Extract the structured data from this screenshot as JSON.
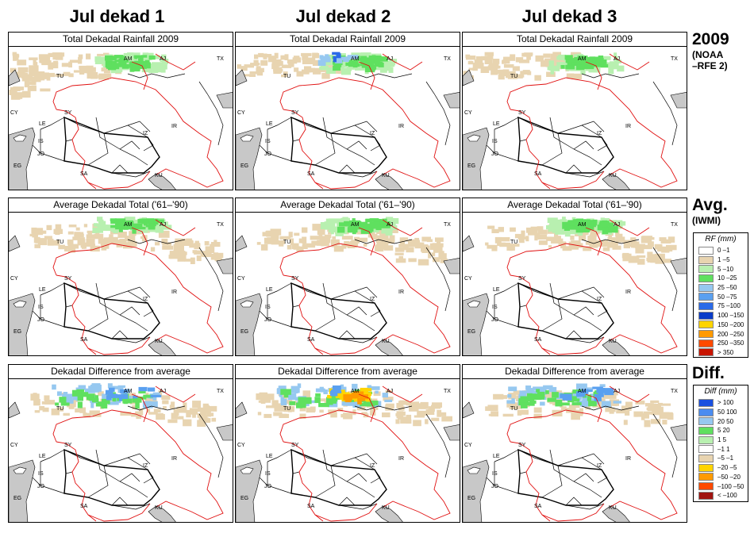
{
  "columns": [
    "Jul dekad 1",
    "Jul dekad 2",
    "Jul dekad 3"
  ],
  "rows": [
    {
      "panel_title": "Total Dekadal Rainfall 2009",
      "label_main": "2009",
      "label_sub": [
        "(NOAA",
        "–RFE 2)"
      ]
    },
    {
      "panel_title": "Average Dekadal Total ('61–'90)",
      "label_main": "Avg.",
      "label_sub": [
        "(IWMI)"
      ]
    },
    {
      "panel_title": "Dekadal Difference from average",
      "label_main": "Diff.",
      "label_sub": []
    }
  ],
  "map_labels": [
    "AM",
    "AJ",
    "TX",
    "TU",
    "CY",
    "SY",
    "LE",
    "IS",
    "JO",
    "EG",
    "IR",
    "SA",
    "KU",
    "IZ"
  ],
  "rf_legend": {
    "title": "RF (mm)",
    "entries": [
      {
        "label": "0 –1",
        "color": "#ffffff"
      },
      {
        "label": "1 –5",
        "color": "#e8d4b0"
      },
      {
        "label": "5 –10",
        "color": "#b8f0b0"
      },
      {
        "label": "10 –25",
        "color": "#5fe05f"
      },
      {
        "label": "25 –50",
        "color": "#96c8f0"
      },
      {
        "label": "50 –75",
        "color": "#5aa0f0"
      },
      {
        "label": "75 –100",
        "color": "#2a6ae8"
      },
      {
        "label": "100 –150",
        "color": "#0a3cc8"
      },
      {
        "label": "150 –200",
        "color": "#ffd400"
      },
      {
        "label": "200 –250",
        "color": "#ff9a00"
      },
      {
        "label": "250 –350",
        "color": "#ff4a00"
      },
      {
        "label": "> 350",
        "color": "#c81400"
      }
    ]
  },
  "diff_legend": {
    "title": "Diff (mm)",
    "entries": [
      {
        "label": "> 100",
        "color": "#1a50e0"
      },
      {
        "label": "50  100",
        "color": "#4a8cf0"
      },
      {
        "label": "20  50",
        "color": "#96c8f0"
      },
      {
        "label": "5  20",
        "color": "#5fe05f"
      },
      {
        "label": "1  5",
        "color": "#b8f0b0"
      },
      {
        "label": "–1  1",
        "color": "#ffffff"
      },
      {
        "label": "–5  –1",
        "color": "#e8d4b0"
      },
      {
        "label": "–20  –5",
        "color": "#ffd400"
      },
      {
        "label": "–50  –20",
        "color": "#ff9a00"
      },
      {
        "label": "–100  –50",
        "color": "#ff4a00"
      },
      {
        "label": "< –100",
        "color": "#a01410"
      }
    ]
  }
}
